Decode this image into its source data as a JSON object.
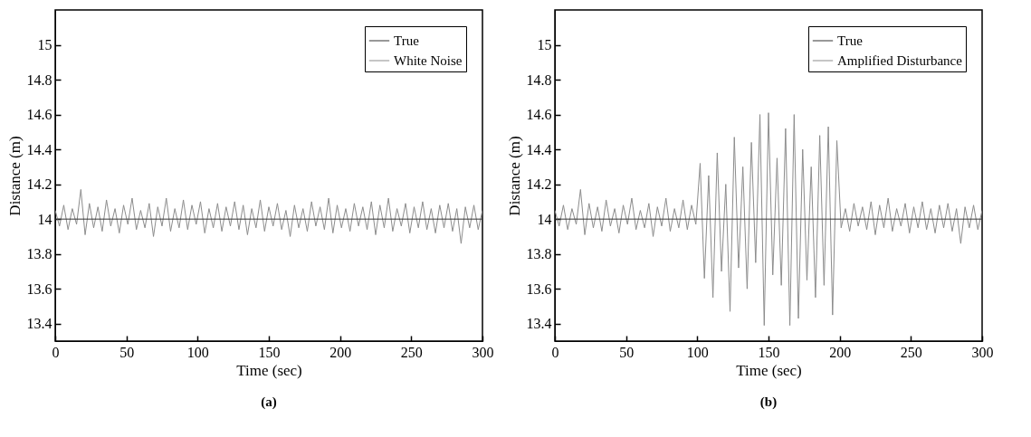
{
  "chart_data": [
    {
      "type": "line",
      "title": "(a)",
      "xlabel": "Time (sec)",
      "ylabel": "Distance (m)",
      "xlim": [
        0,
        300
      ],
      "xticks": [
        0,
        50,
        100,
        150,
        200,
        250,
        300
      ],
      "ylim": [
        13.3,
        15.2
      ],
      "yticks": [
        13.4,
        13.6,
        13.8,
        14,
        14.2,
        14.4,
        14.6,
        14.8,
        15
      ],
      "grid": false,
      "legend": "top right",
      "series": [
        {
          "name": "True",
          "color": "#333333",
          "x": [
            0,
            300
          ],
          "values": [
            14,
            14
          ]
        },
        {
          "name": "White Noise",
          "color": "#8c8c8c",
          "x": [
            0,
            3,
            6,
            9,
            12,
            15,
            18,
            21,
            24,
            27,
            30,
            33,
            36,
            39,
            42,
            45,
            48,
            51,
            54,
            57,
            60,
            63,
            66,
            69,
            72,
            75,
            78,
            81,
            84,
            87,
            90,
            93,
            96,
            99,
            102,
            105,
            108,
            111,
            114,
            117,
            120,
            123,
            126,
            129,
            132,
            135,
            138,
            141,
            144,
            147,
            150,
            153,
            156,
            159,
            162,
            165,
            168,
            171,
            174,
            177,
            180,
            183,
            186,
            189,
            192,
            195,
            198,
            201,
            204,
            207,
            210,
            213,
            216,
            219,
            222,
            225,
            228,
            231,
            234,
            237,
            240,
            243,
            246,
            249,
            252,
            255,
            258,
            261,
            264,
            267,
            270,
            273,
            276,
            279,
            282,
            285,
            288,
            291,
            294,
            297,
            300
          ],
          "values": [
            14.05,
            13.96,
            14.08,
            13.94,
            14.06,
            13.97,
            14.17,
            13.91,
            14.09,
            13.95,
            14.07,
            13.93,
            14.11,
            13.96,
            14.06,
            13.92,
            14.08,
            13.97,
            14.12,
            13.94,
            14.05,
            13.95,
            14.09,
            13.9,
            14.07,
            13.96,
            14.12,
            13.93,
            14.06,
            13.95,
            14.11,
            13.94,
            14.08,
            13.97,
            14.1,
            13.92,
            14.06,
            13.95,
            14.09,
            13.93,
            14.07,
            13.96,
            14.1,
            13.94,
            14.08,
            13.91,
            14.06,
            13.95,
            14.11,
            13.93,
            14.07,
            13.96,
            14.09,
            13.94,
            14.05,
            13.9,
            14.08,
            13.95,
            14.06,
            13.93,
            14.1,
            13.96,
            14.07,
            13.94,
            14.12,
            13.92,
            14.08,
            13.95,
            14.06,
            13.93,
            14.09,
            13.96,
            14.07,
            13.94,
            14.1,
            13.91,
            14.08,
            13.95,
            14.12,
            13.93,
            14.06,
            13.96,
            14.09,
            13.92,
            14.07,
            13.95,
            14.1,
            13.94,
            14.06,
            13.92,
            14.08,
            13.95,
            14.09,
            13.93,
            14.06,
            13.86,
            14.07,
            13.95,
            14.08,
            13.94,
            14.05
          ]
        }
      ]
    },
    {
      "type": "line",
      "title": "(b)",
      "xlabel": "Time (sec)",
      "ylabel": "Distance (m)",
      "xlim": [
        0,
        300
      ],
      "xticks": [
        0,
        50,
        100,
        150,
        200,
        250,
        300
      ],
      "ylim": [
        13.3,
        15.2
      ],
      "yticks": [
        13.4,
        13.6,
        13.8,
        14,
        14.2,
        14.4,
        14.6,
        14.8,
        15
      ],
      "grid": false,
      "legend": "top right",
      "series": [
        {
          "name": "True",
          "color": "#333333",
          "x": [
            0,
            300
          ],
          "values": [
            14,
            14
          ]
        },
        {
          "name": "Amplified Disturbance",
          "color": "#8c8c8c",
          "x": [
            0,
            3,
            6,
            9,
            12,
            15,
            18,
            21,
            24,
            27,
            30,
            33,
            36,
            39,
            42,
            45,
            48,
            51,
            54,
            57,
            60,
            63,
            66,
            69,
            72,
            75,
            78,
            81,
            84,
            87,
            90,
            93,
            96,
            99,
            102,
            105,
            108,
            111,
            114,
            117,
            120,
            123,
            126,
            129,
            132,
            135,
            138,
            141,
            144,
            147,
            150,
            153,
            156,
            159,
            162,
            165,
            168,
            171,
            174,
            177,
            180,
            183,
            186,
            189,
            192,
            195,
            198,
            201,
            204,
            207,
            210,
            213,
            216,
            219,
            222,
            225,
            228,
            231,
            234,
            237,
            240,
            243,
            246,
            249,
            252,
            255,
            258,
            261,
            264,
            267,
            270,
            273,
            276,
            279,
            282,
            285,
            288,
            291,
            294,
            297,
            300
          ],
          "values": [
            14.05,
            13.96,
            14.08,
            13.94,
            14.06,
            13.97,
            14.17,
            13.91,
            14.09,
            13.95,
            14.07,
            13.93,
            14.11,
            13.96,
            14.06,
            13.92,
            14.08,
            13.97,
            14.12,
            13.94,
            14.05,
            13.95,
            14.09,
            13.9,
            14.07,
            13.96,
            14.12,
            13.93,
            14.06,
            13.95,
            14.11,
            13.94,
            14.08,
            13.97,
            14.32,
            13.66,
            14.25,
            13.55,
            14.38,
            13.7,
            14.2,
            13.47,
            14.47,
            13.72,
            14.3,
            13.6,
            14.44,
            13.75,
            14.6,
            13.39,
            14.61,
            13.68,
            14.35,
            13.62,
            14.52,
            13.39,
            14.6,
            13.43,
            14.4,
            13.65,
            14.3,
            13.55,
            14.48,
            13.62,
            14.53,
            13.45,
            14.45,
            13.95,
            14.06,
            13.93,
            14.09,
            13.96,
            14.07,
            13.94,
            14.1,
            13.91,
            14.08,
            13.95,
            14.12,
            13.93,
            14.06,
            13.96,
            14.09,
            13.92,
            14.07,
            13.95,
            14.1,
            13.94,
            14.06,
            13.92,
            14.08,
            13.95,
            14.09,
            13.93,
            14.06,
            13.86,
            14.07,
            13.95,
            14.08,
            13.94,
            14.05
          ]
        }
      ]
    }
  ]
}
